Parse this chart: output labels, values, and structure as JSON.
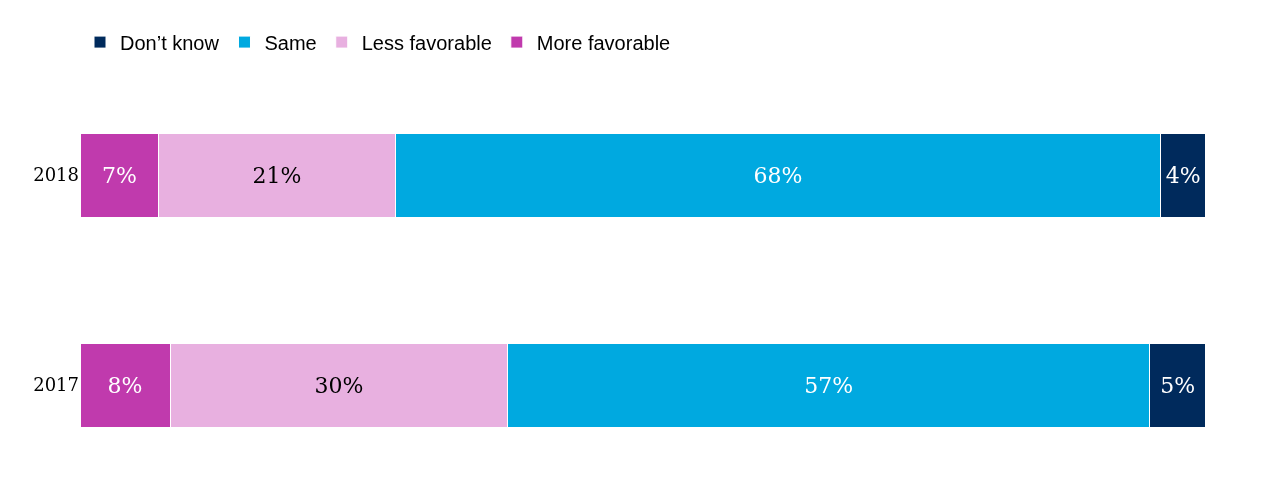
{
  "chart_data": {
    "type": "bar",
    "orientation": "horizontal",
    "stacked": true,
    "legend": "top",
    "grid": false,
    "tick_labels": "y",
    "categories": [
      "2018",
      "2017"
    ],
    "series": [
      {
        "name": "More favorable",
        "color": "#c03aad",
        "values": [
          7,
          8
        ],
        "value_labels": [
          "7%",
          "8%"
        ]
      },
      {
        "name": "Less favorable",
        "color": "#e8b0e0",
        "values": [
          21,
          30
        ],
        "value_labels": [
          "21%",
          "30%"
        ]
      },
      {
        "name": "Same",
        "color": "#00a9e0",
        "values": [
          68,
          57
        ],
        "value_labels": [
          "68%",
          "57%"
        ]
      },
      {
        "name": "Don’t know",
        "color": "#002a5c",
        "values": [
          4,
          5
        ],
        "value_labels": [
          "4%",
          "5%"
        ]
      }
    ]
  }
}
